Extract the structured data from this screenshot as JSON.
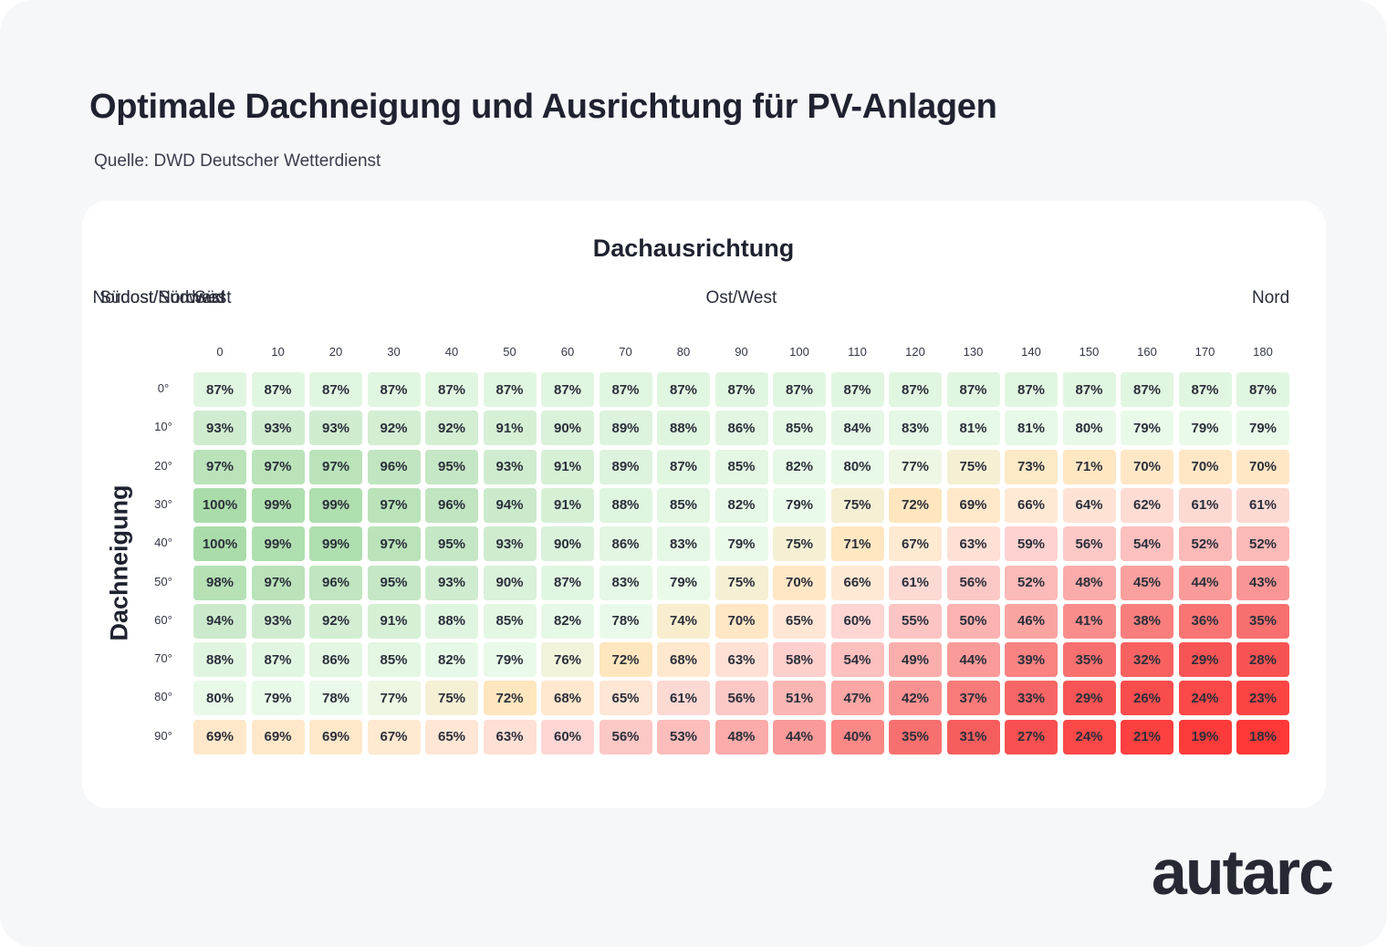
{
  "title": "Optimale Dachneigung und Ausrichtung für PV-Anlagen",
  "source": "Quelle: DWD Deutscher Wetterdienst",
  "logo": "autarc",
  "chart_data": {
    "type": "heatmap",
    "xlabel": "Dachausrichtung",
    "ylabel": "Dachneigung",
    "direction_labels": [
      {
        "label": "Süd",
        "at": 0
      },
      {
        "label": "Südost/Südwest",
        "at": 45
      },
      {
        "label": "Ost/West",
        "at": 90
      },
      {
        "label": "Nordost/Nordwest",
        "at": 135
      },
      {
        "label": "Nord",
        "at": 180
      }
    ],
    "x": [
      "0",
      "10",
      "20",
      "30",
      "40",
      "50",
      "60",
      "70",
      "80",
      "90",
      "100",
      "110",
      "120",
      "130",
      "140",
      "150",
      "160",
      "170",
      "180"
    ],
    "y": [
      "0°",
      "10°",
      "20°",
      "30°",
      "40°",
      "50°",
      "60°",
      "70°",
      "80°",
      "90°"
    ],
    "values": [
      [
        87,
        87,
        87,
        87,
        87,
        87,
        87,
        87,
        87,
        87,
        87,
        87,
        87,
        87,
        87,
        87,
        87,
        87,
        87
      ],
      [
        93,
        93,
        93,
        92,
        92,
        91,
        90,
        89,
        88,
        86,
        85,
        84,
        83,
        81,
        81,
        80,
        79,
        79,
        79
      ],
      [
        97,
        97,
        97,
        96,
        95,
        93,
        91,
        89,
        87,
        85,
        82,
        80,
        77,
        75,
        73,
        71,
        70,
        70,
        70
      ],
      [
        100,
        99,
        99,
        97,
        96,
        94,
        91,
        88,
        85,
        82,
        79,
        75,
        72,
        69,
        66,
        64,
        62,
        61,
        61
      ],
      [
        100,
        99,
        99,
        97,
        95,
        93,
        90,
        86,
        83,
        79,
        75,
        71,
        67,
        63,
        59,
        56,
        54,
        52,
        52
      ],
      [
        98,
        97,
        96,
        95,
        93,
        90,
        87,
        83,
        79,
        75,
        70,
        66,
        61,
        56,
        52,
        48,
        45,
        44,
        43
      ],
      [
        94,
        93,
        92,
        91,
        88,
        85,
        82,
        78,
        74,
        70,
        65,
        60,
        55,
        50,
        46,
        41,
        38,
        36,
        35
      ],
      [
        88,
        87,
        86,
        85,
        82,
        79,
        76,
        72,
        68,
        63,
        58,
        54,
        49,
        44,
        39,
        35,
        32,
        29,
        28
      ],
      [
        80,
        79,
        78,
        77,
        75,
        72,
        68,
        65,
        61,
        56,
        51,
        47,
        42,
        37,
        33,
        29,
        26,
        24,
        23
      ],
      [
        69,
        69,
        69,
        67,
        65,
        63,
        60,
        56,
        53,
        48,
        44,
        40,
        35,
        31,
        27,
        24,
        21,
        19,
        18
      ]
    ],
    "unit": "%"
  }
}
